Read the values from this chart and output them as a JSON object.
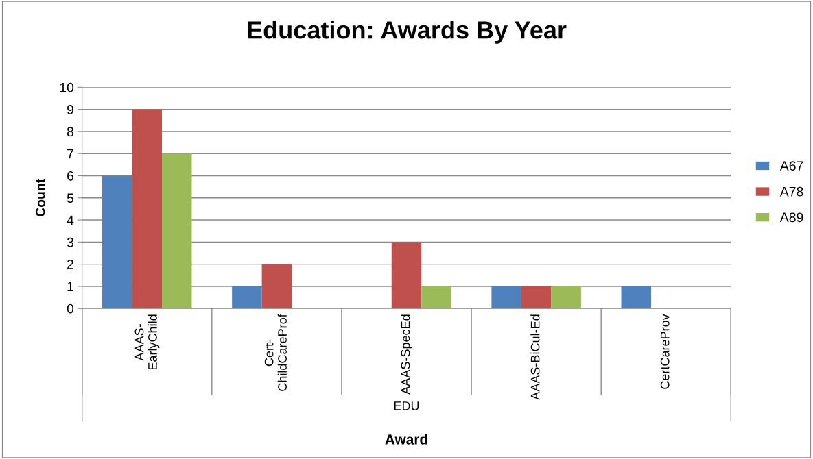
{
  "chart_data": {
    "type": "bar",
    "title": "Education: Awards By Year",
    "xlabel": "Award",
    "ylabel": "Count",
    "categories": [
      "AAAS-EarlyChild",
      "Cert-ChildCareProf",
      "AAAS-SpecEd",
      "AAAS-BiCul-Ed",
      "CertCareProv"
    ],
    "series": [
      {
        "name": "A67",
        "color": "#4f81bd",
        "values": [
          6,
          1,
          0,
          1,
          1
        ]
      },
      {
        "name": "A78",
        "color": "#c0504d",
        "values": [
          9,
          2,
          3,
          1,
          0
        ]
      },
      {
        "name": "A89",
        "color": "#9bbb59",
        "values": [
          7,
          0,
          1,
          1,
          0
        ]
      }
    ],
    "annotations": [
      "EDU"
    ],
    "ylim": [
      0,
      10
    ],
    "yticks": [
      0,
      1,
      2,
      3,
      4,
      5,
      6,
      7,
      8,
      9,
      10
    ],
    "grid": "y",
    "legend": "right"
  }
}
